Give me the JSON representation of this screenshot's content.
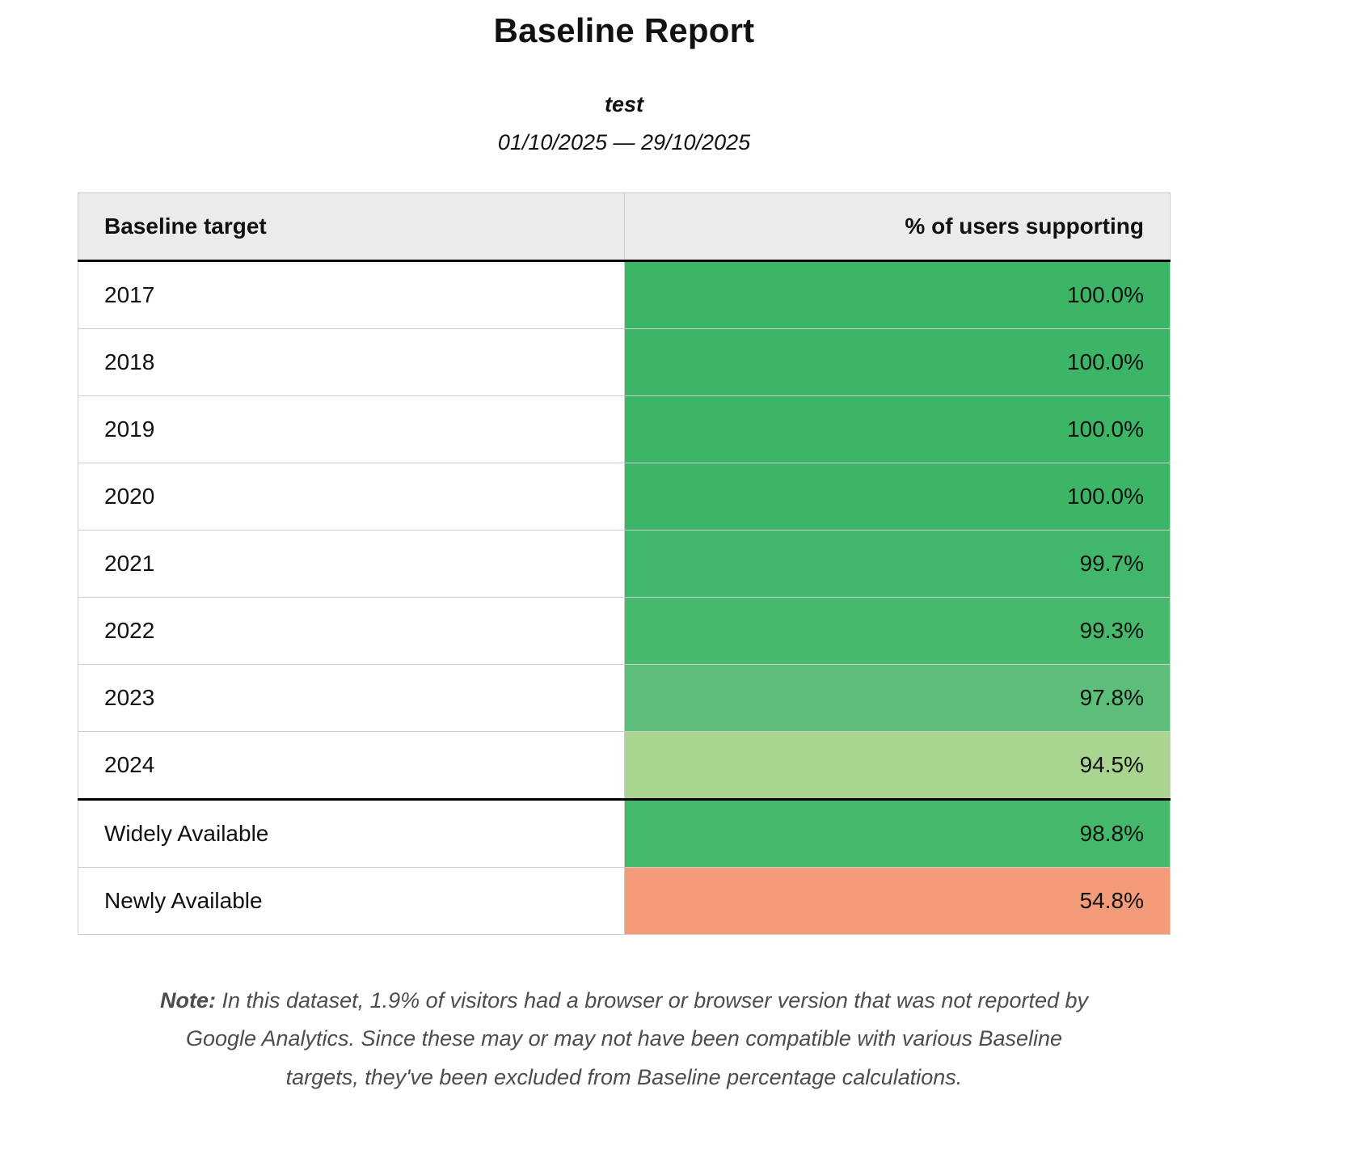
{
  "report": {
    "title": "Baseline Report",
    "subtitle": "test",
    "date_range": "01/10/2025 — 29/10/2025"
  },
  "table": {
    "columns": [
      "Baseline target",
      "% of users supporting"
    ],
    "rows": [
      {
        "target": "2017",
        "percent": "100.0%",
        "color": "#3cb567",
        "group": "year-targets"
      },
      {
        "target": "2018",
        "percent": "100.0%",
        "color": "#3cb567",
        "group": "year-targets"
      },
      {
        "target": "2019",
        "percent": "100.0%",
        "color": "#3cb567",
        "group": "year-targets"
      },
      {
        "target": "2020",
        "percent": "100.0%",
        "color": "#3cb567",
        "group": "year-targets"
      },
      {
        "target": "2021",
        "percent": "99.7%",
        "color": "#40b76a",
        "group": "year-targets"
      },
      {
        "target": "2022",
        "percent": "99.3%",
        "color": "#46b96d",
        "group": "year-targets"
      },
      {
        "target": "2023",
        "percent": "97.8%",
        "color": "#5cbe78",
        "group": "year-targets"
      },
      {
        "target": "2024",
        "percent": "94.5%",
        "color": "#a9d590",
        "group": "year-targets"
      },
      {
        "target": "Widely Available",
        "percent": "98.8%",
        "color": "#44b96c",
        "group": "baseline-status"
      },
      {
        "target": "Newly Available",
        "percent": "54.8%",
        "color": "#f49c79",
        "group": "baseline-status"
      }
    ]
  },
  "note": {
    "label": "Note:",
    "text": "In this dataset, 1.9% of visitors had a browser or browser version that was not reported by Google Analytics. Since these may or may not have been compatible with various Baseline targets, they've been excluded from Baseline percentage calculations."
  },
  "chart_data": {
    "type": "table",
    "title": "Baseline Report",
    "subtitle": "test",
    "date_range": "01/10/2025 — 29/10/2025",
    "columns": [
      "Baseline target",
      "% of users supporting"
    ],
    "categories": [
      "2017",
      "2018",
      "2019",
      "2020",
      "2021",
      "2022",
      "2023",
      "2024",
      "Widely Available",
      "Newly Available"
    ],
    "values": [
      100.0,
      100.0,
      100.0,
      100.0,
      99.7,
      99.3,
      97.8,
      94.5,
      98.8,
      54.8
    ],
    "value_colors": [
      "#3cb567",
      "#3cb567",
      "#3cb567",
      "#3cb567",
      "#40b76a",
      "#46b96d",
      "#5cbe78",
      "#a9d590",
      "#44b96c",
      "#f49c79"
    ]
  }
}
